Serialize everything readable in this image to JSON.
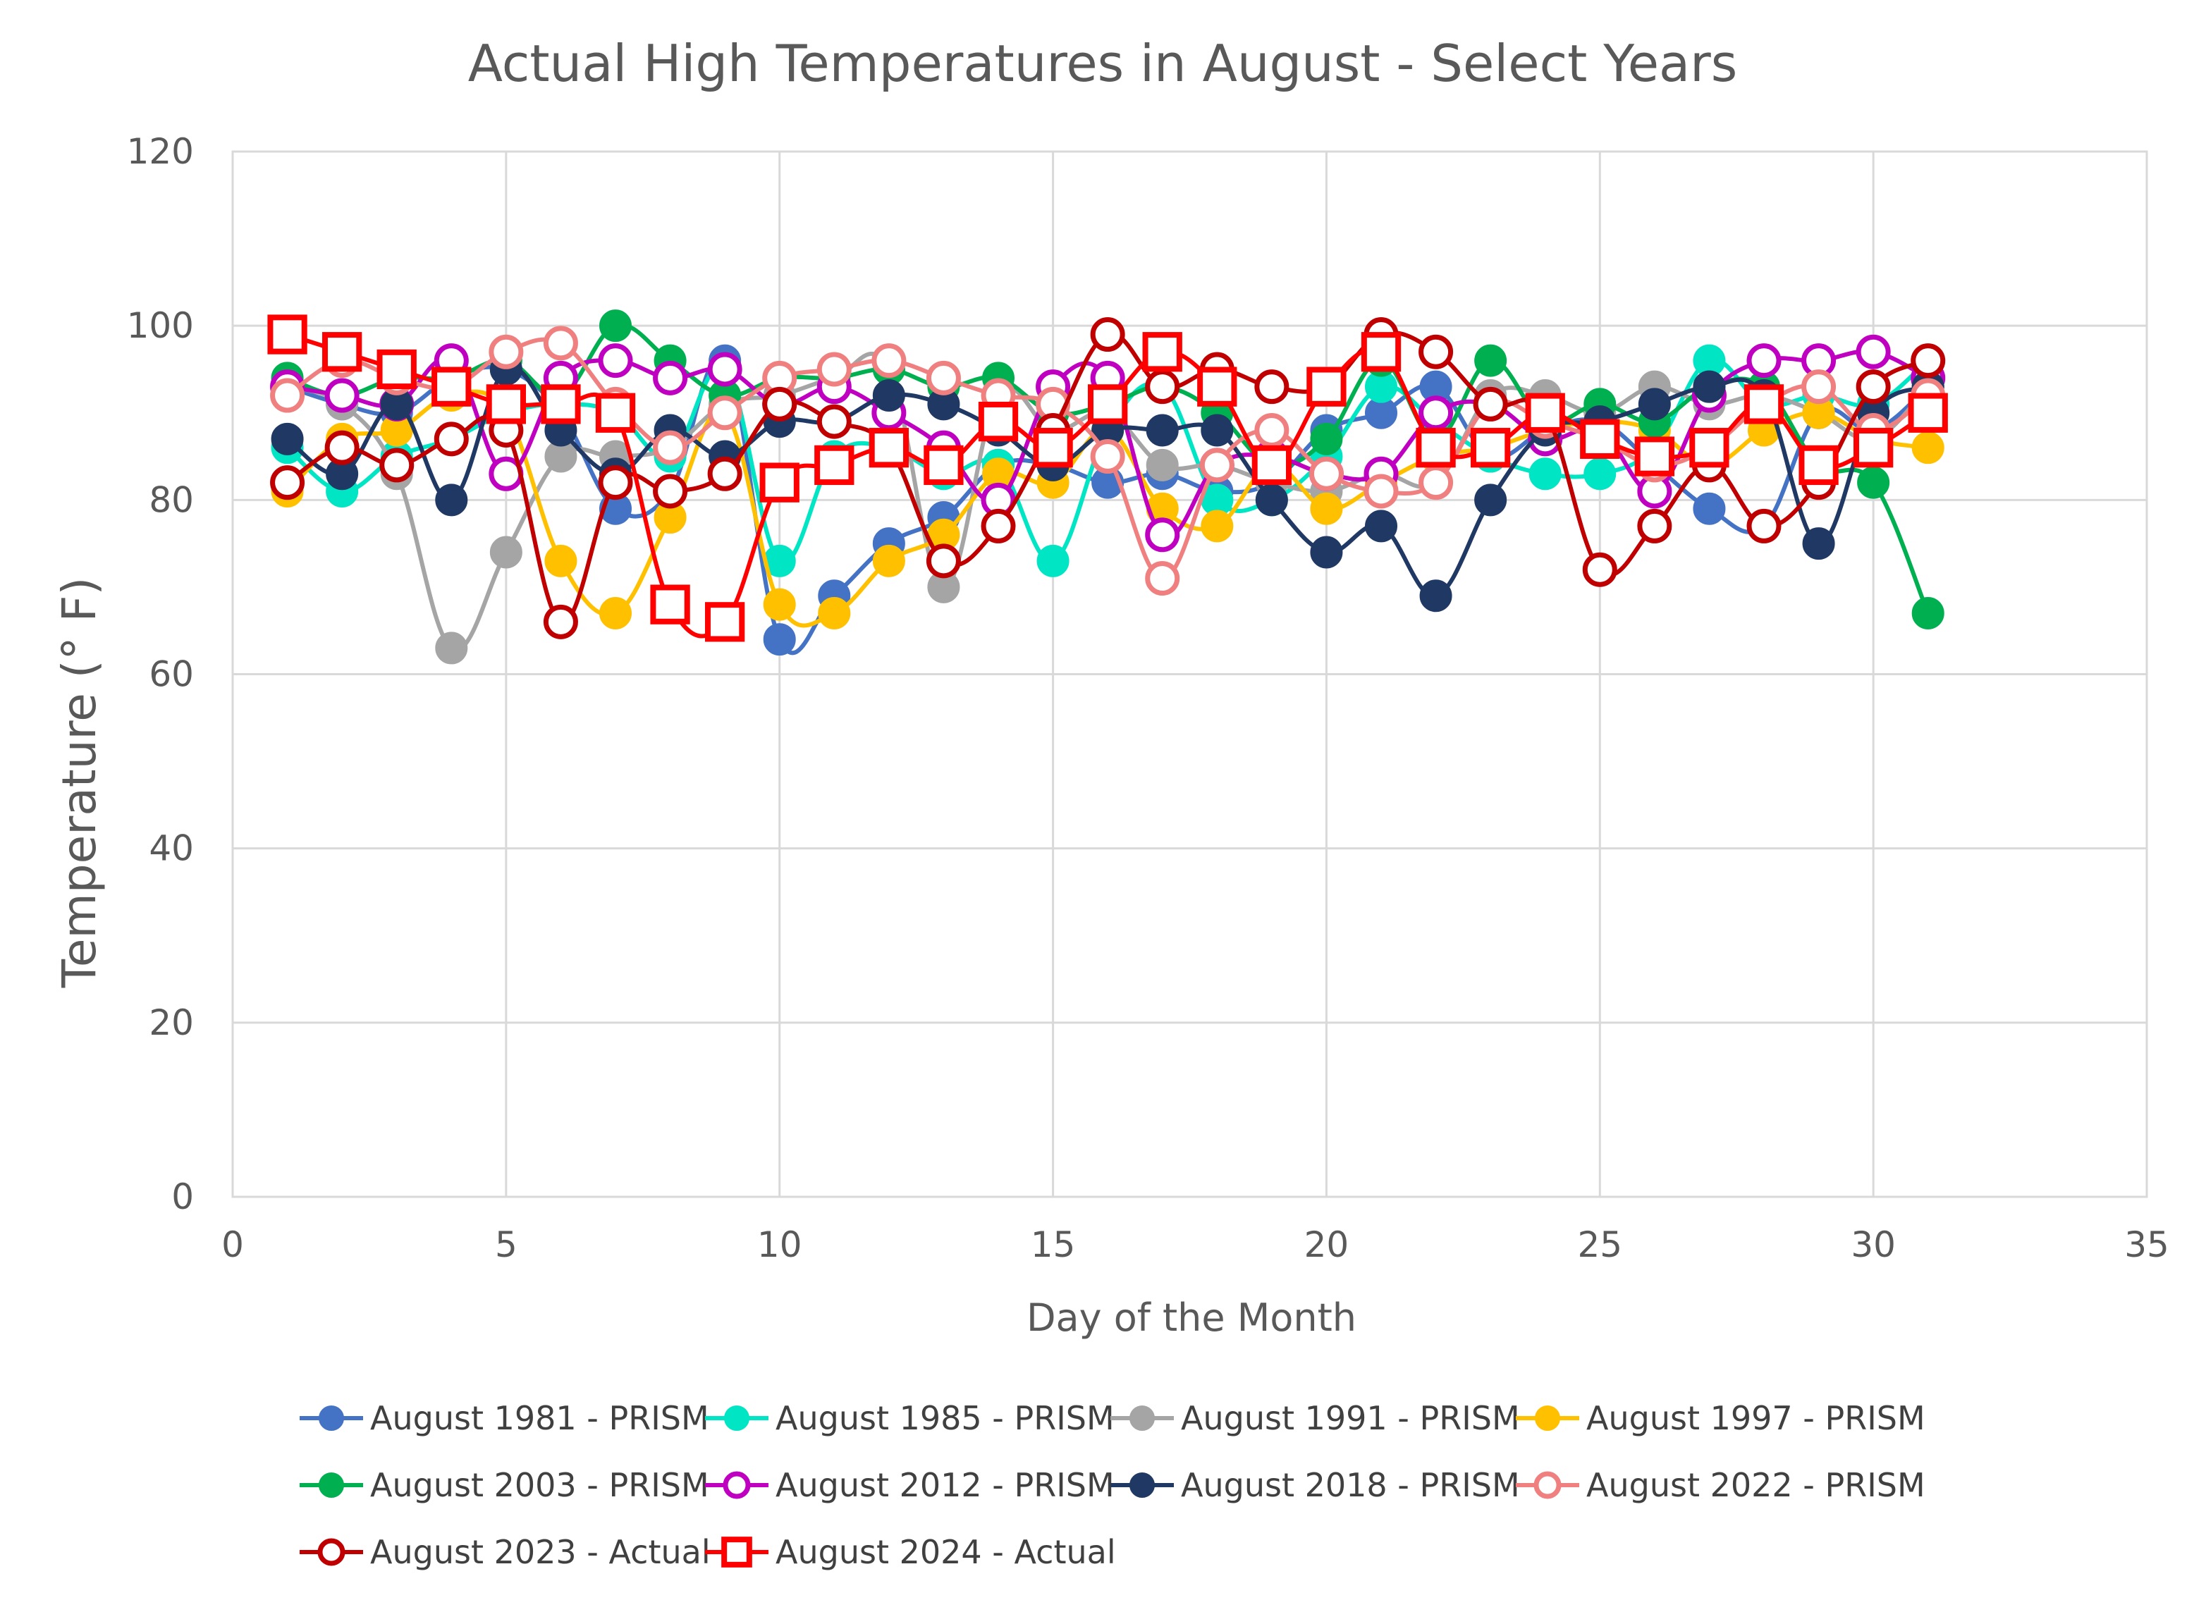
{
  "chart_data": {
    "type": "line",
    "title": "Actual High Temperatures in August - Select Years",
    "xlabel": "Day of the Month",
    "ylabel": "Temperature (° F)",
    "xlim": [
      0,
      35
    ],
    "ylim": [
      0,
      120
    ],
    "xticks": [
      0,
      5,
      10,
      15,
      20,
      25,
      30,
      35
    ],
    "yticks": [
      0,
      20,
      40,
      60,
      80,
      100,
      120
    ],
    "grid": true,
    "legend_position": "bottom",
    "x": [
      1,
      2,
      3,
      4,
      5,
      6,
      7,
      8,
      9,
      10,
      11,
      12,
      13,
      14,
      15,
      16,
      17,
      18,
      19,
      20,
      21,
      22,
      23,
      24,
      25,
      26,
      27,
      28,
      29,
      30,
      31
    ],
    "series": [
      {
        "name": "August 1981 - PRISM",
        "color": "#4472C4",
        "marker": "filled-circle",
        "values": [
          93,
          91,
          90,
          94,
          95,
          90,
          79,
          81,
          96,
          64,
          69,
          75,
          78,
          84,
          84,
          82,
          83,
          81,
          82,
          88,
          90,
          93,
          85,
          88,
          89,
          84,
          79,
          77,
          90,
          88,
          93
        ]
      },
      {
        "name": "August 1985 - PRISM",
        "color": "#00E5C4",
        "marker": "filled-circle",
        "values": [
          86,
          81,
          85,
          87,
          90,
          91,
          90,
          85,
          95,
          73,
          85,
          86,
          83,
          84,
          73,
          88,
          93,
          80,
          80,
          85,
          93,
          89,
          85,
          83,
          83,
          86,
          96,
          91,
          92,
          91,
          96
        ]
      },
      {
        "name": "August 1991 - PRISM",
        "color": "#A5A5A5",
        "marker": "filled-circle",
        "values": [
          93,
          91,
          83,
          63,
          74,
          85,
          85,
          86,
          91,
          92,
          94,
          95,
          70,
          92,
          88,
          90,
          84,
          84,
          82,
          81,
          83,
          82,
          92,
          92,
          90,
          93,
          91,
          92,
          90,
          87,
          93
        ]
      },
      {
        "name": "August 1997 - PRISM",
        "color": "#FFC000",
        "marker": "filled-circle",
        "values": [
          81,
          87,
          88,
          92,
          90,
          73,
          67,
          78,
          90,
          68,
          67,
          73,
          76,
          83,
          82,
          88,
          79,
          77,
          84,
          79,
          82,
          85,
          86,
          88,
          89,
          88,
          84,
          88,
          90,
          87,
          86
        ]
      },
      {
        "name": "August 2003 - PRISM",
        "color": "#00B050",
        "marker": "filled-circle",
        "values": [
          94,
          92,
          94,
          94,
          96,
          92,
          100,
          96,
          92,
          94,
          94,
          95,
          93,
          94,
          90,
          91,
          93,
          90,
          84,
          87,
          96,
          87,
          96,
          89,
          91,
          89,
          93,
          93,
          84,
          82,
          67
        ]
      },
      {
        "name": "August 2012 - PRISM",
        "color": "#C000C0",
        "marker": "open-circle",
        "values": [
          93,
          92,
          91,
          96,
          83,
          94,
          96,
          94,
          95,
          91,
          93,
          90,
          86,
          80,
          93,
          94,
          76,
          84,
          85,
          83,
          83,
          90,
          91,
          87,
          88,
          81,
          92,
          96,
          96,
          97,
          94
        ]
      },
      {
        "name": "August 2018 - PRISM",
        "color": "#1F3864",
        "marker": "filled-circle",
        "values": [
          87,
          83,
          91,
          80,
          95,
          88,
          83,
          88,
          85,
          89,
          89,
          92,
          91,
          88,
          84,
          88,
          88,
          88,
          80,
          74,
          77,
          69,
          80,
          88,
          89,
          91,
          93,
          92,
          75,
          90,
          93
        ]
      },
      {
        "name": "August 2022 - PRISM",
        "color": "#F08080",
        "marker": "open-circle",
        "values": [
          92,
          96,
          94,
          93,
          97,
          98,
          91,
          86,
          90,
          94,
          95,
          96,
          94,
          92,
          91,
          85,
          71,
          84,
          88,
          83,
          81,
          82,
          91,
          89,
          87,
          84,
          86,
          91,
          93,
          88,
          92
        ]
      },
      {
        "name": "August 2023 - Actual",
        "color": "#C00000",
        "marker": "open-circle",
        "values": [
          82,
          86,
          84,
          87,
          88,
          66,
          82,
          81,
          83,
          91,
          89,
          86,
          73,
          77,
          88,
          99,
          93,
          95,
          93,
          93,
          99,
          97,
          91,
          90,
          72,
          77,
          84,
          77,
          82,
          93,
          96
        ]
      },
      {
        "name": "August 2024 - Actual",
        "color": "#FF0000",
        "marker": "open-square",
        "values": [
          99,
          97,
          95,
          93,
          91,
          91,
          90,
          68,
          66,
          82,
          84,
          86,
          84,
          89,
          86,
          91,
          97,
          93,
          84,
          93,
          97,
          86,
          86,
          90,
          87,
          85,
          86,
          91,
          84,
          86,
          90
        ]
      }
    ]
  }
}
